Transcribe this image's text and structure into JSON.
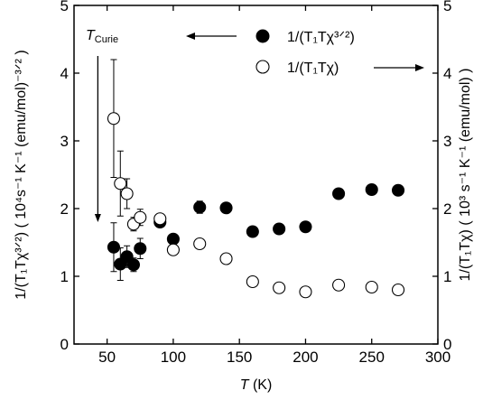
{
  "chart_data": {
    "type": "scatter",
    "xlabel": {
      "italic": "T",
      "rest": " (K)"
    },
    "xlim": [
      25,
      300
    ],
    "x_ticks": [
      50,
      100,
      150,
      200,
      250,
      300
    ],
    "ylim_left": [
      0,
      5
    ],
    "ylim_right": [
      0,
      5
    ],
    "y_ticks": [
      0,
      1,
      2,
      3,
      4,
      5
    ],
    "ylabel_left": "1/(T₁Tχ³ᐟ²) ( 10⁴s⁻¹ K⁻¹ (emu/mol)⁻³ᐟ² )",
    "ylabel_right": "1/(T₁Tχ) ( 10³ s⁻¹ K⁻¹ (emu/mol) )",
    "legend": [
      {
        "marker": "filled-circle",
        "label": "1/(T₁Tχ³ᐟ²)",
        "axis_arrow": "left"
      },
      {
        "marker": "open-circle",
        "label": "1/(T₁Tχ)",
        "axis_arrow": "right"
      }
    ],
    "annotation": {
      "text": "T",
      "subscript": "Curie",
      "x": 43,
      "points_to_y": 1.8
    },
    "series": [
      {
        "name": "1/(T₁Tχ³ᐟ²)",
        "axis": "left",
        "marker": "filled",
        "points": [
          {
            "x": 55,
            "y": 1.43,
            "err": 0.36
          },
          {
            "x": 60,
            "y": 1.18,
            "err": 0.24
          },
          {
            "x": 65,
            "y": 1.29,
            "err": 0.16
          },
          {
            "x": 70,
            "y": 1.17,
            "err": 0.1
          },
          {
            "x": 75,
            "y": 1.41,
            "err": 0.15
          },
          {
            "x": 90,
            "y": 1.8,
            "err": 0.07
          },
          {
            "x": 100,
            "y": 1.55,
            "err": 0.05
          },
          {
            "x": 120,
            "y": 2.02,
            "err": 0.09
          },
          {
            "x": 140,
            "y": 2.01,
            "err": 0.04
          },
          {
            "x": 160,
            "y": 1.66,
            "err": 0.04
          },
          {
            "x": 180,
            "y": 1.7,
            "err": 0.04
          },
          {
            "x": 200,
            "y": 1.73,
            "err": 0.04
          },
          {
            "x": 225,
            "y": 2.22,
            "err": 0.03
          },
          {
            "x": 250,
            "y": 2.28,
            "err": 0.03
          },
          {
            "x": 270,
            "y": 2.27,
            "err": 0.03
          }
        ]
      },
      {
        "name": "1/(T₁Tχ)",
        "axis": "right",
        "marker": "open",
        "points": [
          {
            "x": 55,
            "y": 3.33,
            "err": 0.87
          },
          {
            "x": 60,
            "y": 2.37,
            "err": 0.48
          },
          {
            "x": 65,
            "y": 2.22,
            "err": 0.22
          },
          {
            "x": 70,
            "y": 1.77,
            "err": 0.1
          },
          {
            "x": 75,
            "y": 1.87,
            "err": 0.12
          },
          {
            "x": 90,
            "y": 1.85,
            "err": 0.07
          },
          {
            "x": 100,
            "y": 1.39,
            "err": 0.06
          },
          {
            "x": 120,
            "y": 1.48,
            "err": 0.05
          },
          {
            "x": 140,
            "y": 1.26,
            "err": 0.05
          },
          {
            "x": 160,
            "y": 0.92,
            "err": 0.05
          },
          {
            "x": 180,
            "y": 0.83,
            "err": 0.05
          },
          {
            "x": 200,
            "y": 0.77,
            "err": 0.05
          },
          {
            "x": 225,
            "y": 0.87,
            "err": 0.05
          },
          {
            "x": 250,
            "y": 0.84,
            "err": 0.05
          },
          {
            "x": 270,
            "y": 0.8,
            "err": 0.05
          }
        ]
      }
    ]
  }
}
